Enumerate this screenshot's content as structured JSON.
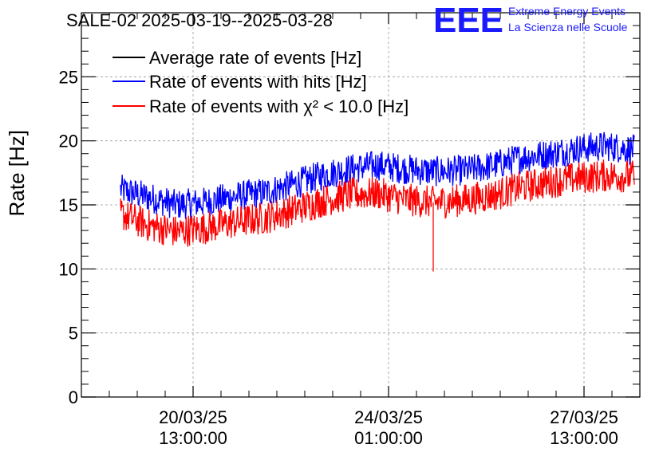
{
  "chart_data": {
    "type": "line",
    "title": "SALE-02 2025-03-19--2025-03-28",
    "xlabel": "",
    "ylabel": "Rate [Hz]",
    "ylim": [
      0,
      30
    ],
    "y_ticks": [
      0,
      5,
      10,
      15,
      20,
      25
    ],
    "x_range_days": [
      0,
      10
    ],
    "x_ticks": [
      {
        "day": 2.0,
        "date": "20/03/25",
        "time": "13:00:00"
      },
      {
        "day": 5.5,
        "date": "24/03/25",
        "time": "01:00:00"
      },
      {
        "day": 9.0,
        "date": "27/03/25",
        "time": "13:00:00"
      }
    ],
    "grid": true,
    "legend_position": "top-left",
    "series": [
      {
        "name": "Average rate of events [Hz]",
        "color": "#000000",
        "x": [],
        "values": []
      },
      {
        "name": "Rate of events with hits [Hz]",
        "color": "#0000ff",
        "x": [
          0.7,
          1.2,
          1.7,
          2.2,
          2.7,
          3.3,
          3.8,
          4.3,
          4.8,
          5.3,
          5.8,
          6.3,
          6.9,
          7.4,
          7.9,
          8.4,
          8.9,
          9.4,
          9.9
        ],
        "values": [
          16.2,
          15.6,
          15.0,
          15.2,
          15.6,
          16.0,
          16.6,
          17.3,
          17.8,
          18.1,
          17.8,
          17.6,
          17.7,
          18.1,
          18.7,
          19.0,
          19.4,
          19.6,
          19.3
        ]
      },
      {
        "name": "Rate of events with χ² < 10.0 [Hz]",
        "color": "#ff0000",
        "x": [
          0.7,
          1.2,
          1.7,
          2.2,
          2.7,
          3.3,
          3.8,
          4.3,
          4.8,
          5.3,
          5.8,
          6.3,
          6.9,
          7.4,
          7.9,
          8.4,
          8.9,
          9.4,
          9.9
        ],
        "values": [
          14.3,
          13.4,
          12.9,
          13.2,
          13.6,
          14.0,
          14.6,
          15.3,
          15.8,
          15.9,
          15.4,
          15.2,
          15.4,
          15.8,
          16.4,
          16.8,
          17.1,
          17.3,
          17.2
        ],
        "annotations": [
          {
            "x": 6.3,
            "y": 9.8,
            "note": "downward spike"
          }
        ]
      }
    ]
  },
  "logo": {
    "letters": "EEE",
    "line1": "Extreme Energy Events",
    "line2": "La Scienza nelle Scuole"
  }
}
